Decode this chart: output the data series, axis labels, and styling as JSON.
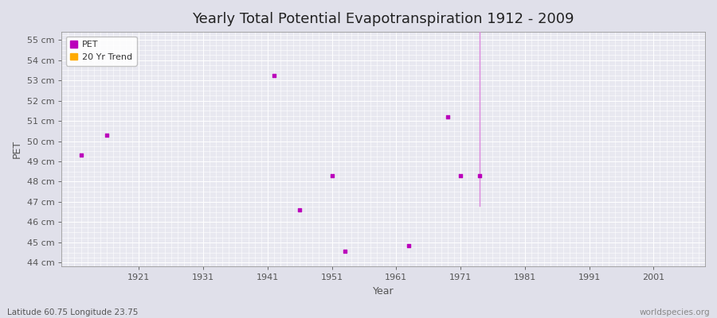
{
  "title": "Yearly Total Potential Evapotranspiration 1912 - 2009",
  "xlabel": "Year",
  "ylabel": "PET",
  "background_color": "#e0e0ea",
  "plot_background": "#e8e8f0",
  "grid_color": "#ffffff",
  "xlim": [
    1909,
    2009
  ],
  "ylim": [
    43.8,
    55.4
  ],
  "xticks": [
    1921,
    1931,
    1941,
    1951,
    1961,
    1971,
    1981,
    1991,
    2001
  ],
  "yticks": [
    44,
    45,
    46,
    47,
    48,
    49,
    50,
    51,
    52,
    53,
    54,
    55
  ],
  "ytick_labels": [
    "44 cm",
    "45 cm",
    "46 cm",
    "47 cm",
    "48 cm",
    "49 cm",
    "50 cm",
    "51 cm",
    "52 cm",
    "53 cm",
    "54 cm",
    "55 cm"
  ],
  "pet_color": "#bb00bb",
  "trend_color": "#dd88dd",
  "pet_marker": "s",
  "pet_marker_size": 2.5,
  "scatter_x": [
    1912,
    1916,
    1942,
    1946,
    1951,
    1953,
    1963,
    1969,
    1971,
    1974
  ],
  "scatter_y": [
    49.3,
    50.3,
    53.25,
    46.6,
    48.3,
    44.55,
    44.85,
    51.2,
    48.3,
    48.3
  ],
  "trend_line_x": [
    1974,
    1974
  ],
  "trend_line_y": [
    46.8,
    55.4
  ],
  "footer_left": "Latitude 60.75 Longitude 23.75",
  "footer_right": "worldspecies.org",
  "title_fontsize": 13,
  "axis_label_fontsize": 9,
  "tick_fontsize": 8,
  "footer_fontsize": 7.5,
  "legend_fontsize": 8
}
